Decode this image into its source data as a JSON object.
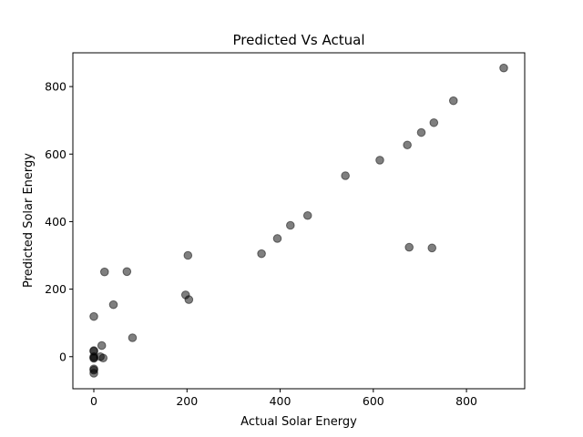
{
  "chart_data": {
    "type": "scatter",
    "title": "Predicted Vs Actual",
    "xlabel": "Actual Solar Energy",
    "ylabel": "Predicted Solar Energy",
    "xlim": [
      -45,
      925
    ],
    "ylim": [
      -95,
      900
    ],
    "xticks": [
      0,
      200,
      400,
      600,
      800
    ],
    "yticks": [
      0,
      200,
      400,
      600,
      800
    ],
    "grid": false,
    "marker_color": "#000000",
    "marker_alpha": 0.5,
    "points": [
      {
        "x": 880,
        "y": 855
      },
      {
        "x": 772,
        "y": 758
      },
      {
        "x": 730,
        "y": 693
      },
      {
        "x": 703,
        "y": 664
      },
      {
        "x": 673,
        "y": 627
      },
      {
        "x": 614,
        "y": 582
      },
      {
        "x": 540,
        "y": 536
      },
      {
        "x": 459,
        "y": 418
      },
      {
        "x": 422,
        "y": 389
      },
      {
        "x": 394,
        "y": 350
      },
      {
        "x": 360,
        "y": 305
      },
      {
        "x": 677,
        "y": 324
      },
      {
        "x": 726,
        "y": 322
      },
      {
        "x": 202,
        "y": 300
      },
      {
        "x": 23,
        "y": 251
      },
      {
        "x": 71,
        "y": 252
      },
      {
        "x": 197,
        "y": 183
      },
      {
        "x": 204,
        "y": 169
      },
      {
        "x": 42,
        "y": 154
      },
      {
        "x": 0,
        "y": 119
      },
      {
        "x": 83,
        "y": 56
      },
      {
        "x": 17,
        "y": 33
      },
      {
        "x": 0,
        "y": 18
      },
      {
        "x": 0,
        "y": 16
      },
      {
        "x": 14,
        "y": 0
      },
      {
        "x": 20,
        "y": -4
      },
      {
        "x": 0,
        "y": 0
      },
      {
        "x": 0,
        "y": -3
      },
      {
        "x": 0,
        "y": -5
      },
      {
        "x": 0,
        "y": -36
      },
      {
        "x": 0,
        "y": -40
      },
      {
        "x": 0,
        "y": -49
      }
    ]
  }
}
